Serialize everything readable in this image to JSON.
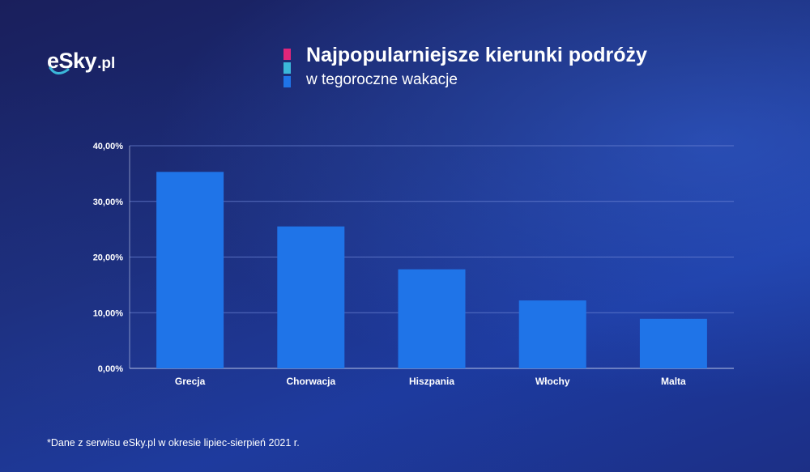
{
  "brand": {
    "logo_text": "eSky",
    "logo_tld": ".pl"
  },
  "header": {
    "title": "Najpopularniejsze kierunki podróży",
    "subtitle": "w tegoroczne wakacje",
    "accent_colors": [
      "#e0267a",
      "#3bb7d9",
      "#1f74e8"
    ]
  },
  "chart_data": {
    "type": "bar",
    "title": "Najpopularniejsze kierunki podróży",
    "subtitle": "w tegoroczne wakacje",
    "categories": [
      "Grecja",
      "Chorwacja",
      "Hiszpania",
      "Włochy",
      "Malta"
    ],
    "values": [
      35.3,
      25.5,
      17.8,
      12.2,
      8.9
    ],
    "unit": "%",
    "ylim": [
      0,
      40
    ],
    "yticks": [
      0,
      10,
      20,
      30,
      40
    ],
    "ytick_labels": [
      "0,00%",
      "10,00%",
      "20,00%",
      "30,00%",
      "40,00%"
    ],
    "xlabel": "",
    "ylabel": "",
    "grid": true,
    "legend": "none",
    "bar_color": "#1f74e8"
  },
  "footnote": "*Dane z serwisu eSky.pl w okresie lipiec-sierpień 2021 r."
}
